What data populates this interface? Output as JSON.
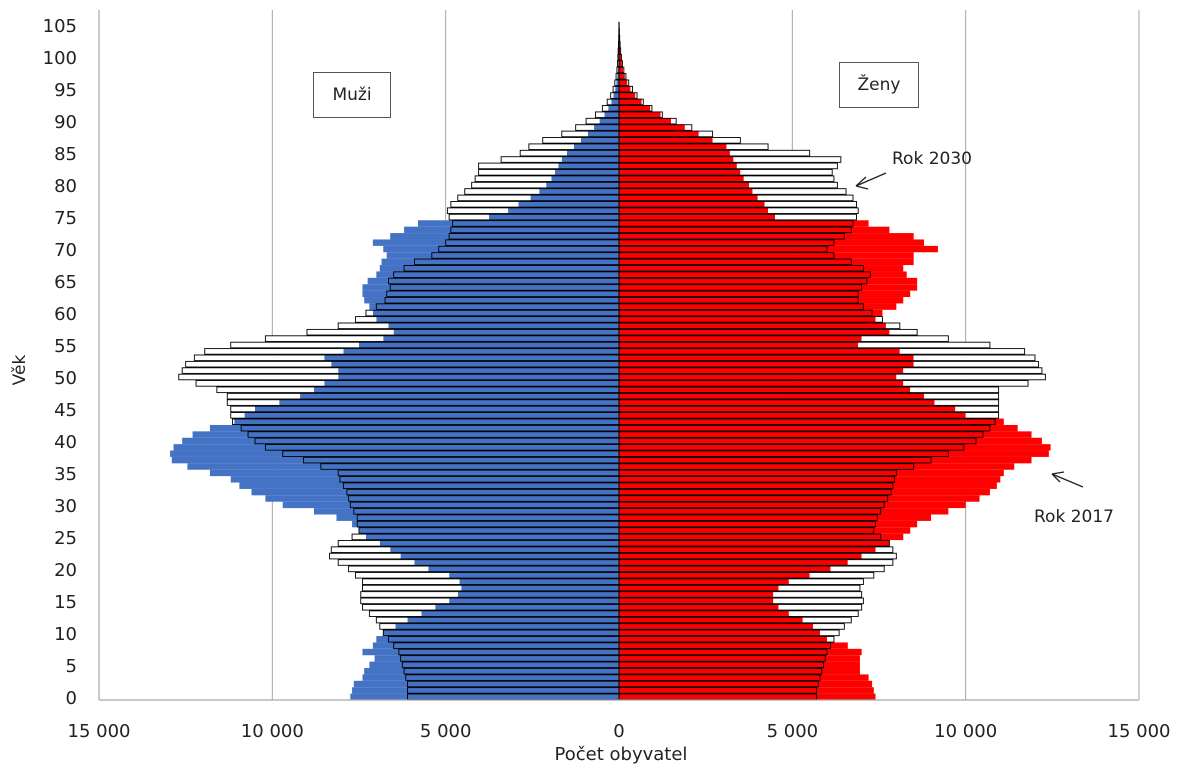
{
  "chart_data": {
    "type": "bar",
    "orientation": "horizontal-population-pyramid",
    "xlabel": "Počet obyvatel",
    "ylabel": "Věk",
    "x_ticks": [
      "15 000",
      "10 000",
      "5 000",
      "0",
      "5 000",
      "10 000",
      "15 000"
    ],
    "y_ticks": [
      "0",
      "5",
      "10",
      "15",
      "20",
      "25",
      "30",
      "35",
      "40",
      "45",
      "50",
      "55",
      "60",
      "65",
      "70",
      "75",
      "80",
      "85",
      "90",
      "95",
      "100",
      "105"
    ],
    "xlim": [
      -15000,
      15000
    ],
    "ylim": [
      0,
      105
    ],
    "grid": true,
    "legend_labels": {
      "men": "Muži",
      "women": "Ženy"
    },
    "annotations": {
      "year_2030": "Rok 2030",
      "year_2017": "Rok 2017"
    },
    "colors": {
      "men_2017": "#4472C4",
      "women_2017": "#FF0000",
      "outline_2030": "#000000",
      "fill_2030": "#FFFFFF",
      "grid": "#A6A6A6"
    },
    "series": [
      {
        "name": "Rok 2030",
        "men": [
          6100,
          6100,
          6100,
          6150,
          6200,
          6250,
          6300,
          6350,
          6500,
          6650,
          6800,
          6900,
          7000,
          7200,
          7400,
          7450,
          7450,
          7400,
          7400,
          7600,
          7800,
          8100,
          8350,
          8300,
          8100,
          7700,
          7500,
          7550,
          7550,
          7650,
          7750,
          7800,
          7850,
          7950,
          8050,
          8100,
          8600,
          9100,
          9700,
          10200,
          10500,
          10700,
          10900,
          11150,
          11200,
          11200,
          11300,
          11300,
          11600,
          12200,
          12700,
          12600,
          12500,
          12250,
          11950,
          11200,
          10200,
          9000,
          8100,
          7600,
          7300,
          7000,
          6750,
          6700,
          6600,
          6650,
          6500,
          6200,
          5900,
          5400,
          5200,
          5000,
          4900,
          4850,
          4800,
          4900,
          4950,
          4850,
          4650,
          4450,
          4250,
          4150,
          4050,
          4050,
          3400,
          2850,
          2600,
          2200,
          1650,
          1250,
          950,
          680,
          480,
          340,
          240,
          170,
          120,
          85,
          60,
          45,
          32,
          24,
          16,
          10,
          6,
          3
        ],
        "women": [
          5700,
          5700,
          5750,
          5800,
          5850,
          5900,
          5950,
          6000,
          6100,
          6200,
          6350,
          6500,
          6700,
          6900,
          7000,
          7050,
          7000,
          6950,
          7050,
          7350,
          7650,
          7900,
          8000,
          7900,
          7800,
          7550,
          7350,
          7400,
          7450,
          7550,
          7650,
          7750,
          7850,
          7900,
          7950,
          8000,
          8500,
          9000,
          9500,
          9950,
          10300,
          10500,
          10700,
          10850,
          10950,
          10950,
          10950,
          10950,
          10950,
          11800,
          12300,
          12200,
          12100,
          12000,
          11700,
          10700,
          9500,
          8600,
          8100,
          7600,
          7300,
          7050,
          6900,
          6900,
          7000,
          7150,
          7250,
          7050,
          6700,
          6200,
          6000,
          6200,
          6500,
          6700,
          6750,
          6850,
          6900,
          6850,
          6750,
          6550,
          6300,
          6200,
          6150,
          6300,
          6400,
          5500,
          4300,
          3500,
          2700,
          2100,
          1650,
          1250,
          950,
          700,
          520,
          390,
          280,
          200,
          140,
          100,
          70,
          48,
          32,
          20,
          12,
          6
        ]
      },
      {
        "name": "Rok 2017",
        "men": [
          7750,
          7700,
          7650,
          7400,
          7350,
          7200,
          7050,
          7400,
          7100,
          7000,
          6800,
          6450,
          6100,
          5700,
          5300,
          4900,
          4650,
          4550,
          4600,
          4900,
          5500,
          5900,
          6300,
          6600,
          6900,
          7300,
          7500,
          7700,
          8150,
          8800,
          9700,
          10200,
          10600,
          10950,
          11200,
          11800,
          12450,
          12900,
          12950,
          12850,
          12600,
          12300,
          11800,
          11100,
          10800,
          10500,
          9800,
          9200,
          8800,
          8500,
          8100,
          8100,
          8300,
          8500,
          7950,
          7500,
          6800,
          6500,
          6650,
          7000,
          7100,
          7200,
          7350,
          7400,
          7400,
          7250,
          7000,
          6900,
          6850,
          6700,
          6800,
          7100,
          6600,
          6200,
          5800,
          3750,
          3200,
          2900,
          2550,
          2300,
          2100,
          1950,
          1850,
          1750,
          1650,
          1500,
          1300,
          1100,
          900,
          720,
          560,
          420,
          310,
          220,
          160,
          110,
          75,
          50,
          35,
          24,
          16,
          10,
          6,
          4,
          2,
          1
        ],
        "women": [
          7400,
          7350,
          7300,
          7200,
          6950,
          6950,
          6950,
          7000,
          6600,
          6000,
          5800,
          5600,
          5300,
          4900,
          4600,
          4450,
          4450,
          4600,
          4900,
          5500,
          6100,
          6600,
          7000,
          7400,
          7800,
          8200,
          8400,
          8600,
          9000,
          9500,
          10000,
          10400,
          10700,
          10900,
          11000,
          11100,
          11400,
          11900,
          12400,
          12450,
          12200,
          11900,
          11500,
          11100,
          10000,
          9700,
          9100,
          8800,
          8400,
          8200,
          8000,
          8200,
          8500,
          8500,
          8100,
          6900,
          7000,
          7800,
          7700,
          7400,
          7600,
          8000,
          8200,
          8400,
          8600,
          8600,
          8300,
          8200,
          8500,
          8500,
          9200,
          8800,
          8500,
          7800,
          7200,
          4500,
          4300,
          4200,
          4000,
          3850,
          3750,
          3600,
          3500,
          3400,
          3300,
          3200,
          3100,
          2700,
          2300,
          1900,
          1500,
          1200,
          900,
          650,
          470,
          330,
          240,
          170,
          120,
          85,
          60,
          40,
          26,
          16,
          9,
          4
        ]
      }
    ]
  }
}
